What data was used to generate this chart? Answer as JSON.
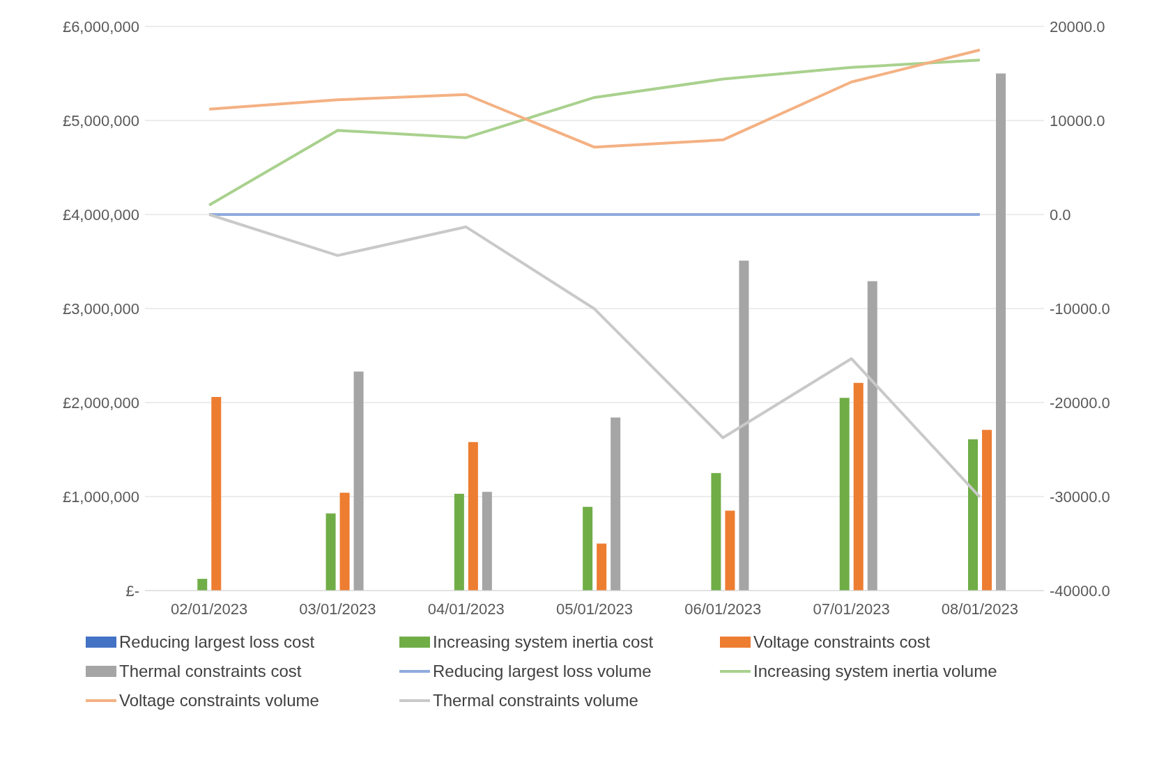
{
  "chart_data": {
    "type": "bar",
    "categories": [
      "02/01/2023",
      "03/01/2023",
      "04/01/2023",
      "05/01/2023",
      "06/01/2023",
      "07/01/2023",
      "08/01/2023"
    ],
    "series": [
      {
        "name": "Reducing largest loss cost",
        "color": "#4472c4",
        "values": [
          0,
          0,
          0,
          0,
          0,
          0,
          0
        ]
      },
      {
        "name": "Increasing system inertia cost",
        "color": "#70ad47",
        "values": [
          125000,
          820000,
          1030000,
          890000,
          1250000,
          2050000,
          1610000
        ]
      },
      {
        "name": "Voltage constraints cost",
        "color": "#ed7d31",
        "values": [
          2060000,
          1040000,
          1580000,
          500000,
          850000,
          2210000,
          1710000
        ]
      },
      {
        "name": "Thermal constraints cost",
        "color": "#a5a5a5",
        "values": [
          0,
          2330000,
          1050000,
          1840000,
          3510000,
          3290000,
          5500000
        ]
      },
      {
        "name": "Reducing largest loss volume",
        "type": "line",
        "axis": "y2",
        "color": "#8faadc",
        "values": [
          0,
          0,
          0,
          0,
          0,
          0,
          0
        ]
      },
      {
        "name": "Increasing system inertia volume",
        "type": "line",
        "axis": "y2",
        "color": "#a9d18e",
        "values": [
          1000,
          8950,
          8170,
          12450,
          14400,
          15640,
          16420
        ]
      },
      {
        "name": "Voltage constraints volume",
        "type": "line",
        "axis": "y2",
        "color": "#f4b183",
        "values": [
          11200,
          12200,
          12760,
          7160,
          7940,
          14090,
          17500
        ]
      },
      {
        "name": "Thermal constraints volume",
        "type": "line",
        "axis": "y2",
        "color": "#c9c9c9",
        "values": [
          0,
          -4360,
          -1320,
          -10040,
          -23740,
          -15330,
          -30040
        ]
      }
    ],
    "ylim": [
      0,
      6000000
    ],
    "yticks": [
      {
        "value": 0,
        "label": "£-"
      },
      {
        "value": 1000000,
        "label": "£1,000,000"
      },
      {
        "value": 2000000,
        "label": "£2,000,000"
      },
      {
        "value": 3000000,
        "label": "£3,000,000"
      },
      {
        "value": 4000000,
        "label": "£4,000,000"
      },
      {
        "value": 5000000,
        "label": "£5,000,000"
      },
      {
        "value": 6000000,
        "label": "£6,000,000"
      }
    ],
    "y2lim": [
      -40000,
      20000
    ],
    "y2ticks": [
      {
        "value": -40000,
        "label": "-40000.0"
      },
      {
        "value": -30000,
        "label": "-30000.0"
      },
      {
        "value": -20000,
        "label": "-20000.0"
      },
      {
        "value": -10000,
        "label": "-10000.0"
      },
      {
        "value": 0,
        "label": "0.0"
      },
      {
        "value": 10000,
        "label": "10000.0"
      },
      {
        "value": 20000,
        "label": "20000.0"
      }
    ],
    "grid": "y",
    "legend": "bottom",
    "marker": "none",
    "line_style": "solid"
  }
}
